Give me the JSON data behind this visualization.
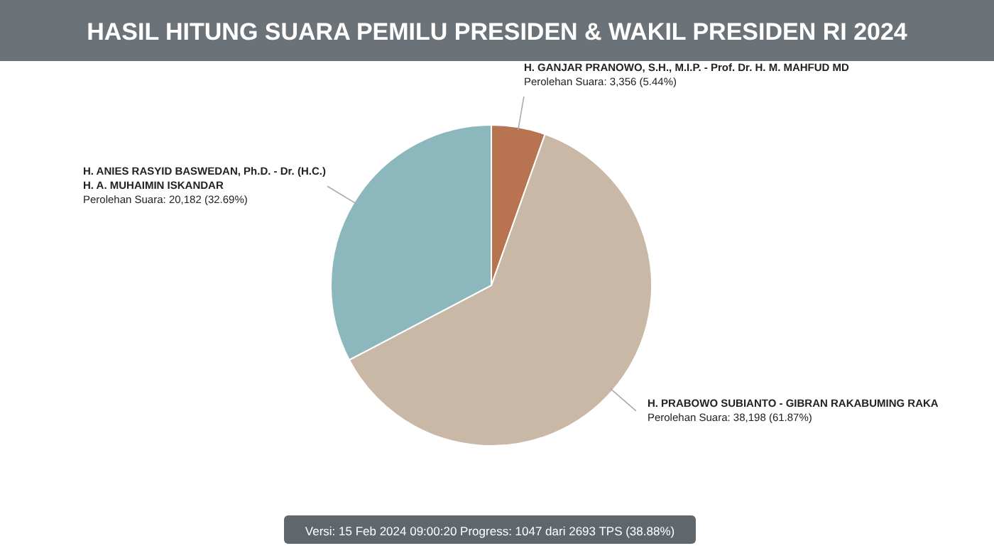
{
  "chart_data": {
    "type": "pie",
    "title": "HASIL HITUNG SUARA PEMILU PRESIDEN & WAKIL PRESIDEN RI 2024",
    "categories": [
      "H. GANJAR PRANOWO, S.H., M.I.P. - Prof. Dr. H. M. MAHFUD MD",
      "H. PRABOWO SUBIANTO - GIBRAN RAKABUMING RAKA",
      "H. ANIES RASYID BASWEDAN, Ph.D. - Dr. (H.C.) H. A. MUHAIMIN ISKANDAR"
    ],
    "values": [
      3356,
      38198,
      20182
    ],
    "colors": [
      "#b87350",
      "#c9b8a5",
      "#8cb8bd"
    ],
    "value_labels": [
      "Perolehan Suara: 3,356 (5.44%)",
      "Perolehan Suara: 38,198 (61.87%)",
      "Perolehan Suara: 20,182 (32.69%)"
    ],
    "annotations": [
      "Versi: 15 Feb 2024 09:00:20 Progress: 1047 dari 2693 TPS (38.88%)"
    ]
  }
}
